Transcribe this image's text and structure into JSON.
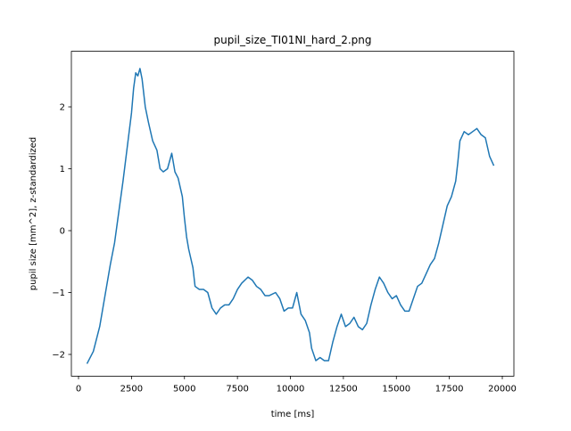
{
  "chart_data": {
    "type": "line",
    "title": "pupil_size_TI01NI_hard_2.png",
    "x_label": "time [ms]",
    "y_label": "pupil size [mm^2], z-standardized",
    "x": [
      400,
      700,
      1000,
      1300,
      1500,
      1700,
      1900,
      2100,
      2300,
      2500,
      2600,
      2700,
      2800,
      2900,
      3000,
      3150,
      3300,
      3500,
      3700,
      3850,
      4000,
      4200,
      4400,
      4550,
      4700,
      4900,
      5000,
      5100,
      5200,
      5400,
      5500,
      5700,
      5900,
      6100,
      6300,
      6500,
      6700,
      6900,
      7100,
      7300,
      7500,
      7700,
      8000,
      8200,
      8400,
      8600,
      8800,
      9000,
      9300,
      9500,
      9700,
      9900,
      10100,
      10300,
      10500,
      10700,
      10900,
      11000,
      11200,
      11400,
      11600,
      11800,
      12000,
      12200,
      12400,
      12600,
      12800,
      13000,
      13200,
      13400,
      13600,
      13800,
      14000,
      14200,
      14400,
      14600,
      14800,
      15000,
      15200,
      15400,
      15600,
      15800,
      16000,
      16200,
      16400,
      16600,
      16800,
      17000,
      17200,
      17400,
      17600,
      17800,
      17900,
      18000,
      18200,
      18400,
      18600,
      18800,
      19000,
      19200,
      19400,
      19600
    ],
    "series": [
      {
        "color": "#1f77b4",
        "values": [
          -2.15,
          -1.95,
          -1.55,
          -0.95,
          -0.55,
          -0.2,
          0.3,
          0.8,
          1.35,
          1.9,
          2.3,
          2.55,
          2.5,
          2.62,
          2.45,
          2.0,
          1.75,
          1.45,
          1.3,
          1.0,
          0.95,
          1.0,
          1.25,
          0.95,
          0.85,
          0.55,
          0.2,
          -0.1,
          -0.3,
          -0.6,
          -0.9,
          -0.95,
          -0.95,
          -1.0,
          -1.25,
          -1.35,
          -1.25,
          -1.2,
          -1.2,
          -1.1,
          -0.95,
          -0.85,
          -0.75,
          -0.8,
          -0.9,
          -0.95,
          -1.05,
          -1.05,
          -1.0,
          -1.1,
          -1.3,
          -1.25,
          -1.25,
          -1.0,
          -1.35,
          -1.45,
          -1.65,
          -1.9,
          -2.1,
          -2.05,
          -2.1,
          -2.1,
          -1.8,
          -1.55,
          -1.35,
          -1.55,
          -1.5,
          -1.4,
          -1.55,
          -1.6,
          -1.5,
          -1.2,
          -0.95,
          -0.75,
          -0.85,
          -1.0,
          -1.1,
          -1.05,
          -1.2,
          -1.3,
          -1.3,
          -1.1,
          -0.9,
          -0.85,
          -0.7,
          -0.55,
          -0.45,
          -0.2,
          0.1,
          0.4,
          0.55,
          0.8,
          1.1,
          1.45,
          1.6,
          1.55,
          1.6,
          1.65,
          1.55,
          1.5,
          1.2,
          1.05
        ]
      }
    ],
    "xlim": [
      -337,
      20547
    ],
    "ylim": [
      -2.351,
      2.898
    ],
    "xticks": [
      0,
      2500,
      5000,
      7500,
      10000,
      12500,
      15000,
      17500,
      20000
    ],
    "yticks": [
      {
        "value": -2,
        "label": "−2"
      },
      {
        "value": -1,
        "label": "−1"
      },
      0,
      1,
      2
    ],
    "grid": false
  }
}
